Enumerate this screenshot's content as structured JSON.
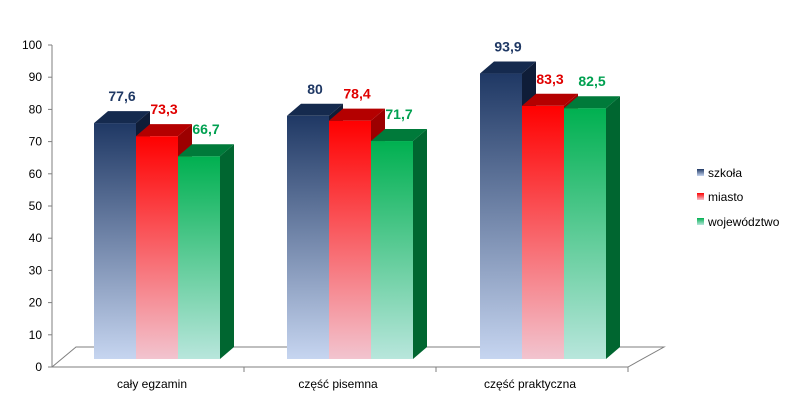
{
  "chart_data": {
    "type": "bar",
    "categories": [
      "cały egzamin",
      "część pisemna",
      "część praktyczna"
    ],
    "series": [
      {
        "name": "szkoła",
        "values": [
          77.6,
          80,
          93.9
        ],
        "labels": [
          "77,6",
          "80",
          "93,9"
        ],
        "color": "#1f3864",
        "label_color": "#1f3864"
      },
      {
        "name": "miasto",
        "values": [
          73.3,
          78.4,
          83.3
        ],
        "labels": [
          "73,3",
          "78,4",
          "83,3"
        ],
        "color": "#ff0000",
        "label_color": "#e00000"
      },
      {
        "name": "województwo",
        "values": [
          66.7,
          71.7,
          82.5
        ],
        "labels": [
          "66,7",
          "71,7",
          "82,5"
        ],
        "color": "#00b050",
        "label_color": "#00a050"
      }
    ],
    "y_ticks": [
      "0",
      "10",
      "20",
      "30",
      "40",
      "50",
      "60",
      "70",
      "80",
      "90",
      "100"
    ],
    "ylim": [
      0,
      100
    ],
    "legend_position": "right",
    "grid": false,
    "style": "3d-gradient-column"
  }
}
